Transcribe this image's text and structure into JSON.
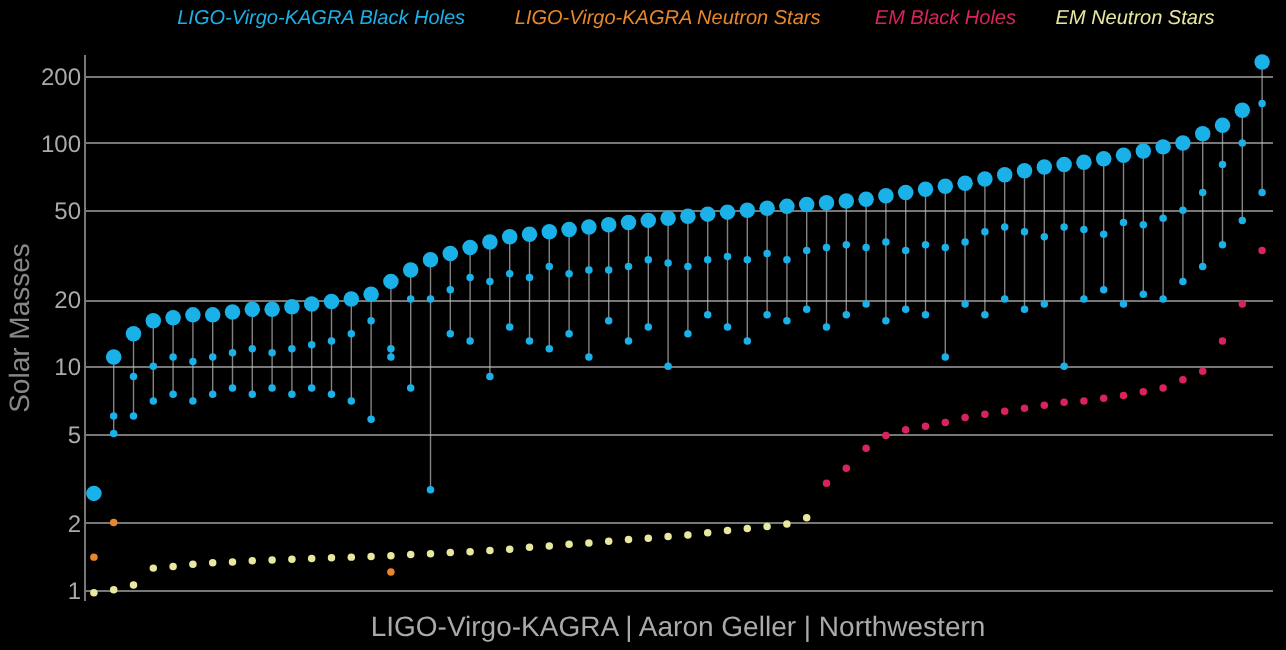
{
  "chart_data": {
    "type": "scatter",
    "ylabel": "Solar Masses",
    "log": "y",
    "ylim": [
      0.9,
      250
    ],
    "yticks": [
      1,
      2,
      5,
      10,
      20,
      50,
      100,
      200
    ],
    "grid": "y",
    "legend": "top",
    "marker": "circle",
    "tick_labels": "y",
    "categories": [
      null,
      null,
      null,
      null,
      null,
      null,
      null,
      null,
      null,
      null,
      null,
      null,
      null,
      null,
      null,
      null,
      null,
      null,
      null,
      null,
      null,
      null,
      null,
      null,
      null,
      null,
      null,
      null,
      null,
      null,
      null,
      null,
      null,
      null,
      null,
      null,
      null,
      null,
      null,
      null,
      null,
      null,
      null,
      null,
      null,
      null,
      null,
      null,
      null,
      null,
      null,
      null,
      null,
      null,
      null,
      null,
      null,
      null,
      null,
      null
    ],
    "series": [
      {
        "name": "LIGO-Virgo-KAGRA Black Holes",
        "color": "#1ab0e8",
        "values": [
          2.7,
          11,
          14,
          16,
          16.5,
          17,
          17,
          17.5,
          18,
          18,
          18.5,
          19,
          19.5,
          20,
          21,
          24,
          27,
          30,
          32,
          34,
          36,
          38,
          39,
          40,
          41,
          42,
          43,
          44,
          45,
          46,
          47,
          48,
          49,
          50,
          51,
          52,
          53,
          54,
          55,
          56,
          58,
          60,
          62,
          64,
          66,
          69,
          72,
          75,
          78,
          80,
          82,
          85,
          88,
          92,
          96,
          100,
          110,
          120,
          140,
          230
        ]
      },
      {
        "color": "#1ab0e8",
        "values": [
          null,
          6,
          9,
          10,
          11,
          10.5,
          11,
          11.5,
          12,
          11.5,
          12,
          12.5,
          13,
          14,
          16,
          12,
          20,
          20,
          22,
          25,
          24,
          26,
          25,
          28,
          26,
          27,
          27,
          28,
          30,
          29,
          28,
          30,
          31,
          30,
          32,
          30,
          33,
          34,
          35,
          34,
          36,
          33,
          35,
          34,
          36,
          40,
          42,
          40,
          38,
          42,
          41,
          39,
          44,
          43,
          46,
          50,
          60,
          80,
          100,
          150
        ]
      },
      {
        "color": "#1ab0e8",
        "values": [
          null,
          5,
          6,
          7,
          7.5,
          7,
          7.5,
          8,
          7.5,
          8,
          7.5,
          8,
          7.5,
          7,
          5.8,
          11,
          8,
          2.8,
          14,
          13,
          9,
          15,
          13,
          12,
          14,
          11,
          16,
          13,
          15,
          10,
          14,
          17,
          15,
          13,
          17,
          16,
          18,
          15,
          17,
          19,
          16,
          18,
          17,
          11,
          19,
          17,
          20,
          18,
          19,
          10,
          20,
          22,
          19,
          21,
          20,
          24,
          28,
          35,
          45,
          60
        ]
      },
      {
        "name": "LIGO-Virgo-KAGRA Neutron Stars",
        "color": "#e8862a",
        "values": [
          1.4,
          2.0,
          null,
          null,
          null,
          null,
          null,
          null,
          null,
          null,
          null,
          null,
          null,
          null,
          null,
          1.2,
          null,
          null,
          null,
          null,
          null,
          null,
          null,
          null,
          null,
          null,
          null,
          null,
          null,
          null,
          null,
          null,
          null,
          null,
          null,
          null,
          null,
          null,
          null,
          null,
          null,
          null,
          null,
          null,
          null,
          null,
          null,
          null,
          null,
          null,
          null,
          null,
          null,
          null,
          null,
          null,
          null,
          null,
          null,
          null
        ]
      },
      {
        "name": "EM Black Holes",
        "color": "#d8245a",
        "values": [
          null,
          null,
          null,
          null,
          null,
          null,
          null,
          null,
          null,
          null,
          null,
          null,
          null,
          null,
          null,
          null,
          null,
          null,
          null,
          null,
          null,
          null,
          null,
          null,
          null,
          null,
          null,
          null,
          null,
          null,
          null,
          null,
          null,
          null,
          null,
          null,
          null,
          3.0,
          3.5,
          4.3,
          4.9,
          5.2,
          5.4,
          5.6,
          5.9,
          6.1,
          6.3,
          6.5,
          6.7,
          6.9,
          7.0,
          7.2,
          7.4,
          7.7,
          8.0,
          8.7,
          9.5,
          13,
          19,
          33
        ]
      },
      {
        "name": "EM Neutron Stars",
        "color": "#e8e8a0",
        "values": [
          0.97,
          1.0,
          1.05,
          1.25,
          1.27,
          1.3,
          1.32,
          1.33,
          1.35,
          1.36,
          1.37,
          1.38,
          1.39,
          1.4,
          1.41,
          1.42,
          1.44,
          1.45,
          1.47,
          1.48,
          1.5,
          1.52,
          1.55,
          1.57,
          1.6,
          1.62,
          1.65,
          1.68,
          1.7,
          1.73,
          1.76,
          1.8,
          1.84,
          1.88,
          1.92,
          1.97,
          2.1,
          null,
          null,
          null,
          null,
          null,
          null,
          null,
          null,
          null,
          null,
          null,
          null,
          null,
          null,
          null,
          null,
          null,
          null,
          null,
          null,
          null,
          null,
          null
        ]
      }
    ],
    "annotations": [
      "LIGO-Virgo-KAGRA | Aaron Geller | Northwestern"
    ]
  }
}
